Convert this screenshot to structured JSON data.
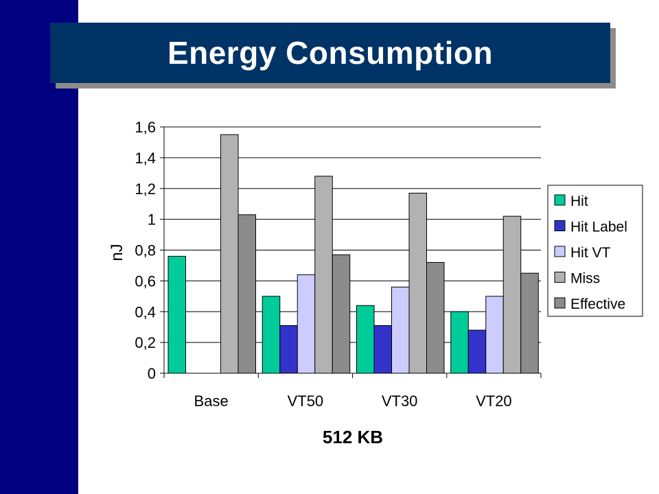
{
  "slide": {
    "title": "Energy Consumption",
    "colors": {
      "left_bar": "#000080",
      "title_bg": "#003366",
      "title_shadow": "#8c8c8c"
    }
  },
  "chart_data": {
    "type": "bar",
    "title": "",
    "xlabel": "512 KB",
    "ylabel": "nJ",
    "categories": [
      "Base",
      "VT50",
      "VT30",
      "VT20"
    ],
    "ylim": [
      0,
      1.6
    ],
    "yticks": [
      "0",
      "0,2",
      "0,4",
      "0,6",
      "0,8",
      "1",
      "1,2",
      "1,4",
      "1,6"
    ],
    "grid": true,
    "legend": "right",
    "series": [
      {
        "name": "Hit",
        "color": "#00cc99",
        "values": [
          0.76,
          0.5,
          0.44,
          0.4
        ]
      },
      {
        "name": "Hit Label",
        "color": "#3333cc",
        "values": [
          null,
          0.31,
          0.31,
          0.28
        ]
      },
      {
        "name": "Hit VT",
        "color": "#ccccff",
        "values": [
          null,
          0.64,
          0.56,
          0.5
        ]
      },
      {
        "name": "Miss",
        "color": "#b2b2b2",
        "values": [
          1.55,
          1.28,
          1.17,
          1.02
        ]
      },
      {
        "name": "Effective",
        "color": "#8c8c8c",
        "values": [
          1.03,
          0.77,
          0.72,
          0.65
        ]
      }
    ]
  }
}
